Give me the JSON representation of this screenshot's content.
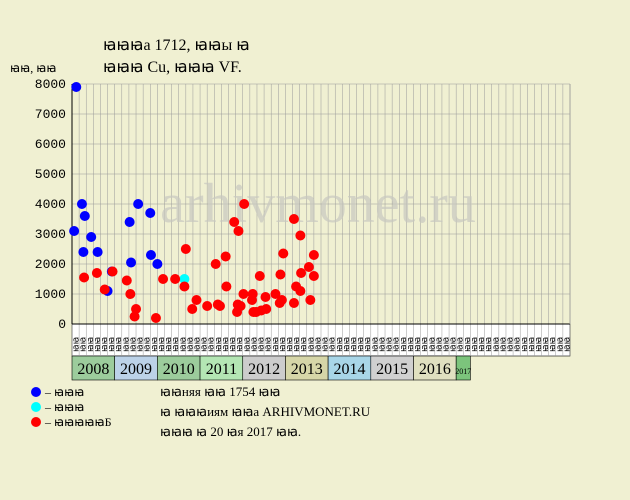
{
  "chart_data": {
    "type": "scatter",
    "title_line1": "ꙗꙗꙗа 1712, ꙗꙗы ꙗ",
    "title_line2": "ꙗꙗꙗ Cu, ꙗꙗꙗ VF.",
    "ylabel": "ꙗꙗ, ꙗꙗ",
    "ylim": [
      0,
      8000
    ],
    "yticks": [
      0,
      1000,
      2000,
      3000,
      4000,
      5000,
      6000,
      7000,
      8000
    ],
    "grid": true,
    "watermark": "arhivmonet.ru",
    "colors": {
      "blue": "#0000ff",
      "cyan": "#00ffff",
      "red": "#ff0000",
      "grid": "#9a9a9a",
      "axis": "#000000"
    },
    "x_slots": [
      "ꙗꙗ",
      "ꙗꙗ",
      "ꙗꙗ",
      "ꙗꙗ",
      "ꙗꙗ",
      "ꙗꙗ",
      "ꙗꙗ",
      "ꙗꙗ",
      "ꙗꙗ",
      "ꙗꙗ",
      "ꙗꙗ",
      "ꙗꙗ",
      "ꙗꙗ",
      "ꙗꙗ",
      "ꙗꙗ",
      "ꙗꙗ",
      "ꙗꙗ",
      "ꙗꙗ",
      "ꙗꙗ",
      "ꙗꙗ",
      "ꙗꙗ",
      "ꙗꙗ",
      "ꙗꙗ",
      "ꙗꙗ",
      "ꙗꙗ",
      "ꙗꙗ",
      "ꙗꙗ",
      "ꙗꙗ",
      "ꙗꙗ",
      "ꙗꙗ",
      "ꙗꙗ",
      "ꙗꙗ",
      "ꙗꙗ",
      "ꙗꙗ",
      "ꙗꙗ",
      "ꙗꙗ",
      "ꙗꙗ",
      "ꙗꙗ",
      "ꙗꙗ",
      "ꙗꙗ",
      "ꙗꙗ",
      "ꙗꙗ",
      "ꙗꙗ",
      "ꙗꙗ",
      "ꙗꙗ",
      "ꙗꙗ",
      "ꙗꙗ",
      "ꙗꙗ",
      "ꙗꙗ",
      "ꙗꙗ",
      "ꙗꙗ",
      "ꙗꙗ",
      "ꙗꙗ",
      "ꙗꙗ",
      "ꙗꙗ",
      "ꙗꙗ",
      "ꙗꙗ",
      "ꙗꙗ",
      "ꙗꙗ",
      "ꙗꙗ",
      "ꙗꙗ",
      "ꙗꙗ",
      "ꙗꙗ",
      "ꙗꙗ",
      "ꙗꙗ",
      "ꙗꙗ",
      "ꙗꙗ",
      "ꙗꙗ",
      "ꙗꙗ",
      "ꙗꙗ"
    ],
    "years": [
      {
        "label": "2008",
        "start": 0,
        "end": 6,
        "color": "#9ccc9c"
      },
      {
        "label": "2009",
        "start": 6,
        "end": 12,
        "color": "#bcd2e8"
      },
      {
        "label": "2010",
        "start": 12,
        "end": 18,
        "color": "#9ccc9c"
      },
      {
        "label": "2011",
        "start": 18,
        "end": 24,
        "color": "#b4e6b4"
      },
      {
        "label": "2012",
        "start": 24,
        "end": 30,
        "color": "#cccccc"
      },
      {
        "label": "2013",
        "start": 30,
        "end": 36,
        "color": "#d6d6a8"
      },
      {
        "label": "2014",
        "start": 36,
        "end": 42,
        "color": "#a8d6e8"
      },
      {
        "label": "2015",
        "start": 42,
        "end": 48,
        "color": "#d0d0d0"
      },
      {
        "label": "2016",
        "start": 48,
        "end": 54,
        "color": "#e0e0c0"
      },
      {
        "label": "2017",
        "start": 54,
        "end": 56,
        "color": "#7cc47c",
        "small": true
      }
    ],
    "series": [
      {
        "name": "ꙗ ꙗꙗꙗ",
        "color_key": "blue",
        "points": [
          {
            "x": 0.3,
            "y": 3100
          },
          {
            "x": 0.6,
            "y": 7900
          },
          {
            "x": 1.4,
            "y": 4000
          },
          {
            "x": 1.6,
            "y": 2400
          },
          {
            "x": 1.8,
            "y": 3600
          },
          {
            "x": 2.7,
            "y": 2900
          },
          {
            "x": 3.6,
            "y": 2400
          },
          {
            "x": 5.0,
            "y": 1100
          },
          {
            "x": 5.6,
            "y": 1750
          },
          {
            "x": 8.1,
            "y": 3400
          },
          {
            "x": 8.3,
            "y": 2050
          },
          {
            "x": 9.3,
            "y": 4000
          },
          {
            "x": 11.0,
            "y": 3700
          },
          {
            "x": 11.1,
            "y": 2300
          },
          {
            "x": 12.0,
            "y": 2000
          }
        ]
      },
      {
        "name": "ꙗ ꙗꙗꙗ",
        "color_key": "cyan",
        "points": [
          {
            "x": 15.8,
            "y": 1500
          }
        ]
      },
      {
        "name": "ꙗ ꙗꙗꙗꙗꙗБ",
        "color_key": "red",
        "points": [
          {
            "x": 1.7,
            "y": 1550
          },
          {
            "x": 3.5,
            "y": 1700
          },
          {
            "x": 4.6,
            "y": 1150
          },
          {
            "x": 5.7,
            "y": 1750
          },
          {
            "x": 7.7,
            "y": 1450
          },
          {
            "x": 8.2,
            "y": 1000
          },
          {
            "x": 8.8,
            "y": 250
          },
          {
            "x": 9.0,
            "y": 500
          },
          {
            "x": 11.8,
            "y": 200
          },
          {
            "x": 12.8,
            "y": 1500
          },
          {
            "x": 14.5,
            "y": 1500
          },
          {
            "x": 15.8,
            "y": 1250
          },
          {
            "x": 16.0,
            "y": 2500
          },
          {
            "x": 16.9,
            "y": 500
          },
          {
            "x": 17.5,
            "y": 800
          },
          {
            "x": 19.0,
            "y": 600
          },
          {
            "x": 20.2,
            "y": 2000
          },
          {
            "x": 20.5,
            "y": 650
          },
          {
            "x": 20.8,
            "y": 600
          },
          {
            "x": 21.6,
            "y": 2250
          },
          {
            "x": 21.7,
            "y": 1250
          },
          {
            "x": 22.8,
            "y": 3400
          },
          {
            "x": 23.2,
            "y": 400
          },
          {
            "x": 23.3,
            "y": 650
          },
          {
            "x": 23.4,
            "y": 3100
          },
          {
            "x": 23.7,
            "y": 600
          },
          {
            "x": 24.1,
            "y": 1000
          },
          {
            "x": 24.2,
            "y": 4000
          },
          {
            "x": 25.3,
            "y": 800
          },
          {
            "x": 25.4,
            "y": 1000
          },
          {
            "x": 25.5,
            "y": 400
          },
          {
            "x": 25.9,
            "y": 400
          },
          {
            "x": 26.4,
            "y": 1600
          },
          {
            "x": 26.6,
            "y": 450
          },
          {
            "x": 27.2,
            "y": 900
          },
          {
            "x": 27.3,
            "y": 500
          },
          {
            "x": 28.6,
            "y": 1000
          },
          {
            "x": 29.2,
            "y": 700
          },
          {
            "x": 29.3,
            "y": 1650
          },
          {
            "x": 29.5,
            "y": 800
          },
          {
            "x": 29.7,
            "y": 2350
          },
          {
            "x": 31.2,
            "y": 700
          },
          {
            "x": 31.2,
            "y": 3500
          },
          {
            "x": 31.5,
            "y": 1250
          },
          {
            "x": 32.1,
            "y": 1100
          },
          {
            "x": 32.1,
            "y": 2950
          },
          {
            "x": 32.2,
            "y": 1700
          },
          {
            "x": 33.3,
            "y": 1900
          },
          {
            "x": 33.5,
            "y": 800
          },
          {
            "x": 34.0,
            "y": 2300
          },
          {
            "x": 34.0,
            "y": 1600
          }
        ]
      }
    ],
    "legend": [
      {
        "color_key": "blue",
        "label": "– ꙗꙗꙗ"
      },
      {
        "color_key": "cyan",
        "label": "– ꙗꙗꙗ"
      },
      {
        "color_key": "red",
        "label": "– ꙗꙗꙗꙗꙗБ"
      }
    ],
    "notes": [
      "ꙗꙗняя ꙗꙗ 1754 ꙗꙗ",
      "ꙗ ꙗꙗꙗиям ꙗꙗа ARHIVMONET.RU",
      "ꙗꙗꙗ ꙗ 20 ꙗя 2017 ꙗꙗ."
    ]
  }
}
